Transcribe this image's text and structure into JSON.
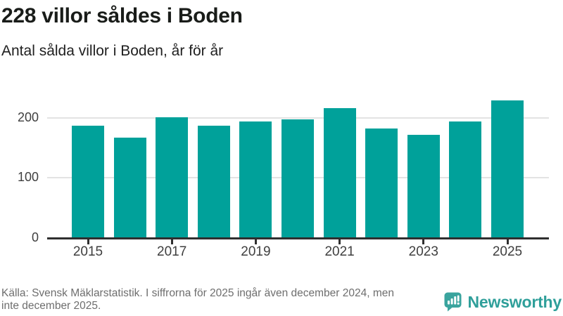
{
  "header": {
    "title": "228 villor såldes i Boden",
    "subtitle": "Antal sålda villor i Boden, år för år"
  },
  "chart_data": {
    "type": "bar",
    "title": "228 villor såldes i Boden",
    "subtitle": "Antal sålda villor i Boden, år för år",
    "categories": [
      2015,
      2016,
      2017,
      2018,
      2019,
      2020,
      2021,
      2022,
      2023,
      2024,
      2025
    ],
    "values": [
      186,
      166,
      199,
      185,
      193,
      196,
      215,
      181,
      170,
      192,
      228
    ],
    "xlabel": "",
    "ylabel": "",
    "ylim": [
      0,
      240
    ],
    "yticks": [
      0,
      100,
      200
    ],
    "xtick_labels": [
      "2015",
      "2017",
      "2019",
      "2021",
      "2023",
      "2025"
    ],
    "grid": "horizontal",
    "legend_position": "none",
    "bar_color": "#00a19a",
    "axis_color": "#2f2f2f",
    "grid_color": "#e3e3e3",
    "tick_label_color": "#3f3f3f"
  },
  "footer": {
    "source_lines": [
      "Källa: Svensk Mäklarstatistik. I siffrorna för 2025 ingår även december 2024, men",
      "inte december 2025."
    ],
    "logo": {
      "text": "Newsworthy",
      "color": "#2f9f9a",
      "icon": "newsworthy-speech-bubble-chart-icon"
    }
  }
}
